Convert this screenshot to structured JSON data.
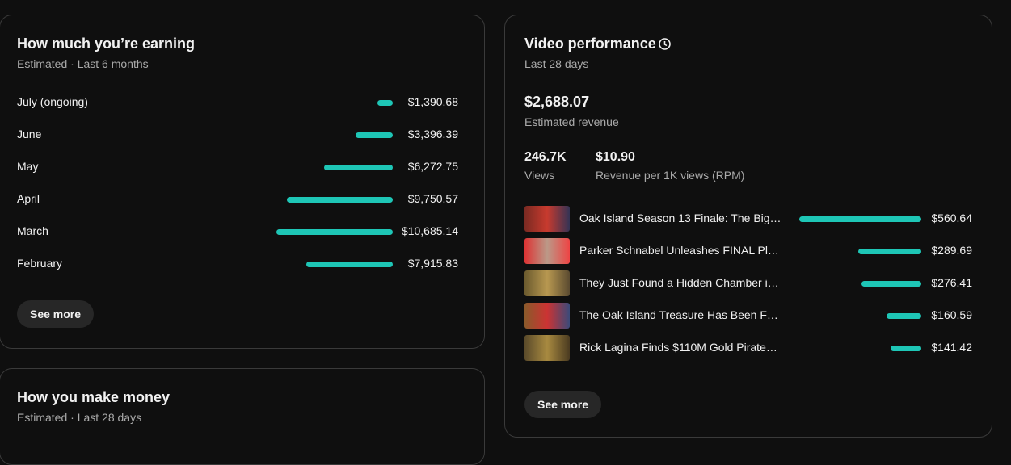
{
  "earnings": {
    "title": "How much you’re earning",
    "subtitle": "Estimated · Last 6 months",
    "months": [
      {
        "name": "July (ongoing)",
        "value": 1390.68,
        "label": "$1,390.68"
      },
      {
        "name": "June",
        "value": 3396.39,
        "label": "$3,396.39"
      },
      {
        "name": "May",
        "value": 6272.75,
        "label": "$6,272.75"
      },
      {
        "name": "April",
        "value": 9750.57,
        "label": "$9,750.57"
      },
      {
        "name": "March",
        "value": 10685.14,
        "label": "$10,685.14"
      },
      {
        "name": "February",
        "value": 7915.83,
        "label": "$7,915.83"
      }
    ],
    "button": "See more"
  },
  "money": {
    "title": "How you make money",
    "subtitle": "Estimated · Last 28 days"
  },
  "performance": {
    "title": "Video performance",
    "subtitle": "Last 28 days",
    "revenue": "$2,688.07",
    "revenue_label": "Estimated revenue",
    "views": "246.7K",
    "views_label": "Views",
    "rpm": "$10.90",
    "rpm_label": "Revenue per 1K views (RPM)",
    "videos": [
      {
        "title": "Oak Island Season 13 Finale: The Big…",
        "value": 560.64,
        "label": "$560.64"
      },
      {
        "title": "Parker Schnabel Unleashes FINAL Pl…",
        "value": 289.69,
        "label": "$289.69"
      },
      {
        "title": "They Just Found a Hidden Chamber i…",
        "value": 276.41,
        "label": "$276.41"
      },
      {
        "title": "The Oak Island Treasure Has Been F…",
        "value": 160.59,
        "label": "$160.59"
      },
      {
        "title": "Rick Lagina Finds $110M Gold Pirate…",
        "value": 141.42,
        "label": "$141.42"
      }
    ],
    "button": "See more"
  }
}
